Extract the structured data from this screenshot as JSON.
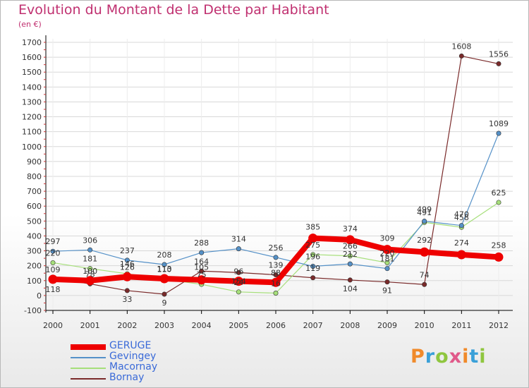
{
  "header": {
    "title": "Evolution du Montant de la Dette par Habitant",
    "subtitle": "(en €)"
  },
  "colors": {
    "title": "#c03070",
    "grid": "#d8d8d8",
    "axis": "#000000",
    "legend_text": "#3a6ad8"
  },
  "logo": {
    "text": "Proxiti",
    "colors": [
      "#f08a2a",
      "#3aa0d8",
      "#8fc63f",
      "#e05a8a"
    ]
  },
  "chart_data": {
    "type": "line",
    "title": "Evolution du Montant de la Dette par Habitant",
    "subtitle": "(en €)",
    "xlabel": "",
    "ylabel": "",
    "x": [
      "2000",
      "2001",
      "2002",
      "2003",
      "2004",
      "2005",
      "2006",
      "2007",
      "2008",
      "2009",
      "2010",
      "2011",
      "2012"
    ],
    "ylim": [
      -100,
      1700
    ],
    "yticks": [
      -100,
      0,
      100,
      200,
      300,
      400,
      500,
      600,
      700,
      800,
      900,
      1000,
      1100,
      1200,
      1300,
      1400,
      1500,
      1600,
      1700
    ],
    "grid": true,
    "legend_position": "bottom-left",
    "series": [
      {
        "name": "GERUGE",
        "color": "#ee0000",
        "width": 8,
        "values": [
          109,
          100,
          126,
          113,
          105,
          96,
          88,
          385,
          374,
          309,
          292,
          274,
          258
        ],
        "labels": [
          "109",
          "100",
          "126",
          "113",
          "105",
          "96",
          "88",
          "385",
          "374",
          "309",
          "292",
          "274",
          "258"
        ],
        "label_offsets": [
          [
            0,
            -10
          ],
          [
            0,
            -10
          ],
          [
            0,
            -10
          ],
          [
            0,
            -10
          ],
          [
            0,
            -14
          ],
          [
            0,
            -10
          ],
          [
            0,
            -10
          ],
          [
            0,
            -12
          ],
          [
            0,
            -12
          ],
          [
            0,
            -12
          ],
          [
            0,
            -13
          ],
          [
            0,
            -13
          ],
          [
            0,
            -13
          ]
        ]
      },
      {
        "name": "Gevingey",
        "color": "#5591c8",
        "width": 1.2,
        "values": [
          297,
          306,
          237,
          208,
          288,
          314,
          256,
          196,
          212,
          181,
          499,
          470,
          1089
        ],
        "labels": [
          "297",
          "306",
          "237",
          "208",
          "288",
          "314",
          "256",
          "196",
          "212",
          "181",
          "499",
          "470",
          "1089"
        ],
        "label_offsets": [
          [
            0,
            -10
          ],
          [
            0,
            -10
          ],
          [
            0,
            -10
          ],
          [
            0,
            -10
          ],
          [
            0,
            -10
          ],
          [
            0,
            -10
          ],
          [
            0,
            -10
          ],
          [
            0,
            -10
          ],
          [
            0,
            -10
          ],
          [
            0,
            -10
          ],
          [
            0,
            -13
          ],
          [
            0,
            -12
          ],
          [
            0,
            -10
          ]
        ]
      },
      {
        "name": "Macornay",
        "color": "#a6df7a",
        "width": 1.2,
        "values": [
          220,
          181,
          146,
          110,
          75,
          24,
          16,
          275,
          266,
          220,
          491,
          458,
          625
        ],
        "labels": [
          "220",
          "181",
          "146",
          "110",
          "75",
          "24",
          "16",
          "275",
          "266",
          "220",
          "491",
          "458",
          "625"
        ],
        "label_offsets": [
          [
            0,
            -10
          ],
          [
            0,
            -10
          ],
          [
            0,
            -10
          ],
          [
            0,
            -10
          ],
          [
            0,
            -10
          ],
          [
            0,
            -10
          ],
          [
            0,
            -10
          ],
          [
            0,
            -10
          ],
          [
            0,
            -10
          ],
          [
            0,
            -10
          ],
          [
            0,
            -10
          ],
          [
            0,
            -10
          ],
          [
            0,
            -10
          ]
        ]
      },
      {
        "name": "Bornay",
        "color": "#7a2a2a",
        "width": 1.2,
        "values": [
          118,
          78,
          33,
          9,
          164,
          154,
          139,
          119,
          104,
          91,
          74,
          1608,
          1556
        ],
        "labels": [
          "118",
          "78",
          "33",
          "9",
          "164",
          "154",
          "139",
          "119",
          "104",
          "91",
          "74",
          "1608",
          "1556"
        ],
        "label_offsets": [
          [
            0,
            20
          ],
          [
            0,
            -10
          ],
          [
            0,
            16
          ],
          [
            0,
            16
          ],
          [
            0,
            -10
          ],
          [
            0,
            16
          ],
          [
            0,
            -10
          ],
          [
            0,
            -10
          ],
          [
            0,
            16
          ],
          [
            0,
            16
          ],
          [
            0,
            -10
          ],
          [
            0,
            -10
          ],
          [
            0,
            -10
          ]
        ]
      }
    ]
  }
}
